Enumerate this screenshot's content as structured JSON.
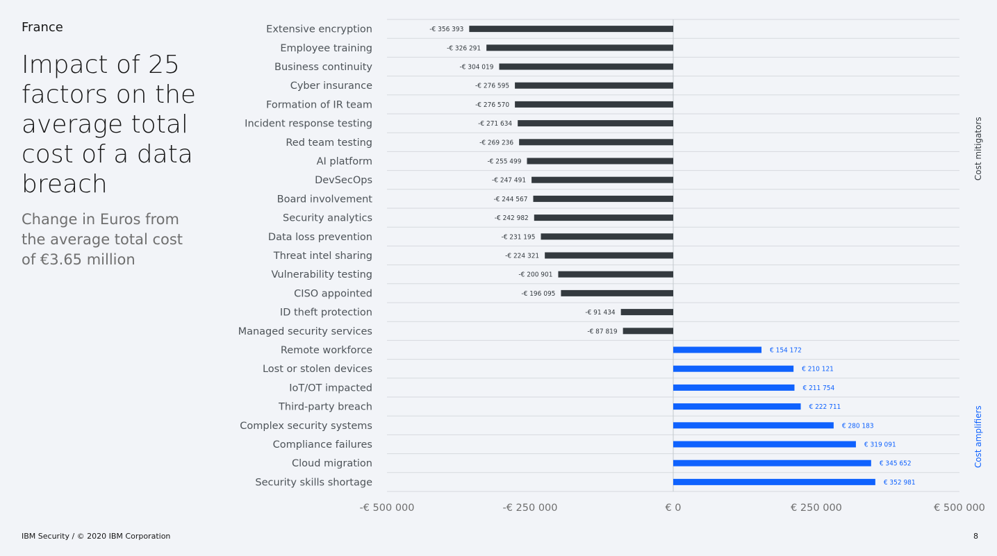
{
  "header": {
    "country": "France",
    "title": "Impact of 25 factors on the average total cost of a data breach",
    "subtitle": "Change in Euros from the average total cost of €3.65 million"
  },
  "footer": {
    "left": "IBM Security / © 2020 IBM Corporation",
    "page": "8"
  },
  "colors": {
    "mitigator": "#343a3f",
    "amplifier": "#0f62fe",
    "background": "#f2f4f8",
    "grid": "#d6d9de"
  },
  "chart_data": {
    "type": "bar",
    "orientation": "horizontal",
    "title": "",
    "xlabel": "",
    "ylabel": "",
    "xlim": [
      -500000,
      500000
    ],
    "x_ticks": [
      -500000,
      -250000,
      0,
      250000,
      500000
    ],
    "x_tick_labels": [
      "-€ 500 000",
      "-€ 250 000",
      "€ 0",
      "€ 250 000",
      "€ 500 000"
    ],
    "grid": true,
    "legend": null,
    "categories": [
      "Extensive encryption",
      "Employee training",
      "Business continuity",
      "Cyber insurance",
      "Formation of IR team",
      "Incident response testing",
      "Red team testing",
      "AI platform",
      "DevSecOps",
      "Board involvement",
      "Security analytics",
      "Data loss prevention",
      "Threat intel sharing",
      "Vulnerability testing",
      "CISO appointed",
      "ID theft protection",
      "Managed security services",
      "Remote workforce",
      "Lost or stolen devices",
      "IoT/OT impacted",
      "Third-party breach",
      "Complex security systems",
      "Compliance failures",
      "Cloud migration",
      "Security skills shortage"
    ],
    "values": [
      -356393,
      -326291,
      -304019,
      -276595,
      -276570,
      -271634,
      -269236,
      -255499,
      -247491,
      -244567,
      -242982,
      -231195,
      -224321,
      -200901,
      -196095,
      -91434,
      -87819,
      154172,
      210121,
      211754,
      222711,
      280183,
      319091,
      345652,
      352981
    ],
    "value_labels": [
      "-€ 356 393",
      "-€ 326 291",
      "-€ 304 019",
      "-€ 276 595",
      "-€ 276 570",
      "-€ 271 634",
      "-€ 269 236",
      "-€ 255 499",
      "-€ 247 491",
      "-€ 244 567",
      "-€ 242 982",
      "-€ 231 195",
      "-€ 224 321",
      "-€ 200 901",
      "-€ 196 095",
      "-€ 91 434",
      "-€ 87 819",
      "€ 154 172",
      "€ 210 121",
      "€ 211 754",
      "€ 222 711",
      "€ 280 183",
      "€ 319 091",
      "€ 345 652",
      "€ 352 981"
    ],
    "groups": [
      {
        "label": "Cost mitigators",
        "start": 0,
        "end": 16,
        "color": "#343a3f"
      },
      {
        "label": "Cost amplifiers",
        "start": 17,
        "end": 24,
        "color": "#0f62fe"
      }
    ]
  }
}
